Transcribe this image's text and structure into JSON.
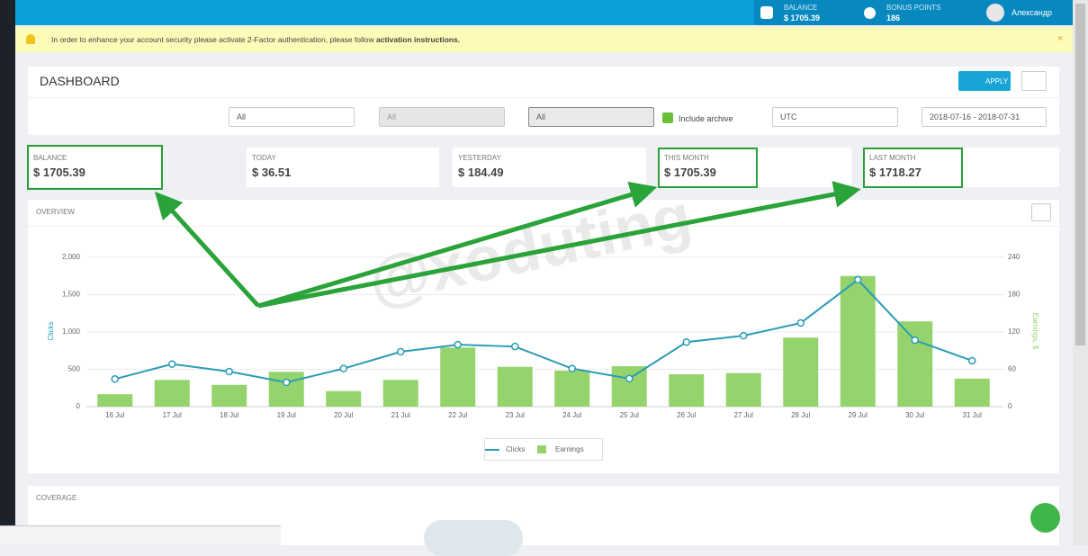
{
  "topbar": {
    "balance_label": "BALANCE",
    "balance": "$ 1705.39",
    "bonus_label": "BONUS POINTS",
    "bonus": "186",
    "user": "Александр"
  },
  "alert": {
    "text": "In order to enhance your account security please activate 2-Factor authentication, please follow",
    "link": "activation instructions."
  },
  "dashboard": {
    "title": "DASHBOARD",
    "apply": "APPLY",
    "filters": {
      "folder": "All",
      "tag": "All",
      "group": "All",
      "include_archive": "Include archive",
      "timezone": "UTC",
      "date_range": "2018-07-16 - 2018-07-31"
    }
  },
  "stats": [
    {
      "label": "BALANCE",
      "value": "$ 1705.39"
    },
    {
      "label": "TODAY",
      "value": "$ 36.51"
    },
    {
      "label": "YESTERDAY",
      "value": "$ 184.49"
    },
    {
      "label": "THIS MONTH",
      "value": "$ 1705.39"
    },
    {
      "label": "LAST MONTH",
      "value": "$ 1718.27"
    }
  ],
  "watermark": "@xoduting",
  "overview": {
    "title": "OVERVIEW"
  },
  "chart_data": {
    "type": "bar",
    "y_label": "Clicks",
    "y2_label": "Earnings, $",
    "categories": [
      "16 Jul",
      "17 Jul",
      "18 Jul",
      "19 Jul",
      "20 Jul",
      "21 Jul",
      "22 Jul",
      "23 Jul",
      "24 Jul",
      "25 Jul",
      "26 Jul",
      "27 Jul",
      "28 Jul",
      "29 Jul",
      "30 Jul",
      "31 Jul"
    ],
    "series": [
      {
        "name": "Clicks",
        "type": "line",
        "color": "#2a9cb6",
        "values": [
          370,
          570,
          470,
          325,
          510,
          735,
          830,
          805,
          510,
          375,
          865,
          950,
          1120,
          1700,
          890,
          615
        ]
      },
      {
        "name": "Earnings",
        "type": "bar",
        "axis": "y2",
        "color": "#95d46c",
        "values": [
          20,
          43,
          35,
          56,
          25,
          43,
          95,
          64,
          58,
          65,
          52,
          54,
          111,
          210,
          137,
          45
        ]
      }
    ],
    "ylim": [
      0,
      2000
    ],
    "yticks": [
      0,
      500,
      {
        "value": 1000,
        "label": "1,000"
      },
      {
        "value": 1500,
        "label": "1,500"
      },
      {
        "value": 2000,
        "label": "2,000"
      }
    ],
    "y2lim": [
      0,
      240
    ],
    "y2ticks": [
      0,
      60,
      120,
      180,
      240
    ],
    "grid": true
  },
  "coverage": {
    "title": "COVERAGE"
  }
}
